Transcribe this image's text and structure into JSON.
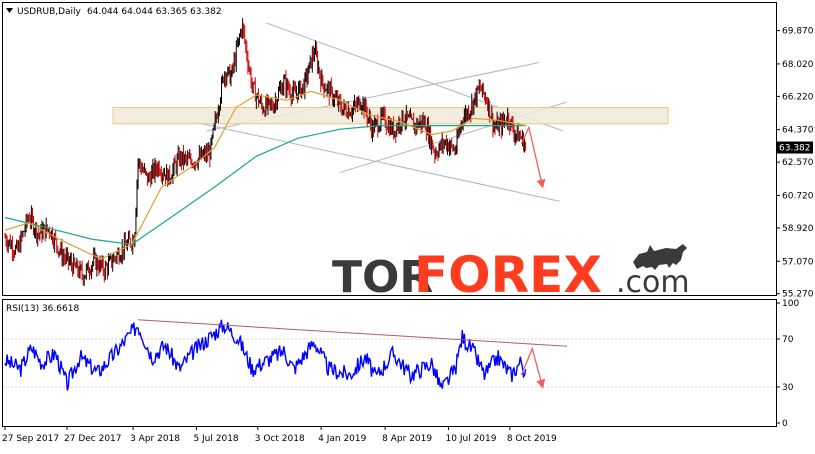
{
  "chart_data": [
    {
      "type": "candlestick",
      "symbol_header": "USDRUB,Daily",
      "ohlc_header": "64.044 64.044 63.365 63.382",
      "last_price_label": "63.382",
      "y_ticks": [
        "69.870",
        "68.020",
        "66.220",
        "64.370",
        "62.570",
        "60.720",
        "58.920",
        "57.070",
        "55.270"
      ],
      "y_values": [
        69.87,
        68.02,
        66.22,
        64.37,
        62.57,
        60.72,
        58.92,
        57.07,
        55.27
      ],
      "ylim": [
        55.2,
        71.4
      ],
      "x_ticks": [
        "27 Sep 2017",
        "27 Dec 2017",
        "3 Apr 2018",
        "5 Jul 2018",
        "3 Oct 2018",
        "4 Jan 2019",
        "8 Apr 2019",
        "10 Jul 2019",
        "8 Oct 2019"
      ],
      "price_path": [
        [
          "2017-09-27",
          58.4
        ],
        [
          "2017-10-15",
          57.6
        ],
        [
          "2017-11-01",
          59.6
        ],
        [
          "2017-11-15",
          58.6
        ],
        [
          "2017-12-01",
          58.9
        ],
        [
          "2017-12-20",
          57.4
        ],
        [
          "2018-01-05",
          56.8
        ],
        [
          "2018-01-20",
          56.3
        ],
        [
          "2018-02-05",
          57.1
        ],
        [
          "2018-02-20",
          56.6
        ],
        [
          "2018-03-05",
          57.2
        ],
        [
          "2018-03-20",
          57.8
        ],
        [
          "2018-04-05",
          58.4
        ],
        [
          "2018-04-10",
          62.6
        ],
        [
          "2018-04-25",
          61.6
        ],
        [
          "2018-05-10",
          62.4
        ],
        [
          "2018-05-25",
          61.7
        ],
        [
          "2018-06-10",
          62.8
        ],
        [
          "2018-06-25",
          62.6
        ],
        [
          "2018-07-10",
          62.8
        ],
        [
          "2018-07-25",
          63.1
        ],
        [
          "2018-08-05",
          65.5
        ],
        [
          "2018-08-15",
          67.6
        ],
        [
          "2018-08-25",
          67.3
        ],
        [
          "2018-09-10",
          70.2
        ],
        [
          "2018-09-25",
          66.7
        ],
        [
          "2018-10-10",
          65.6
        ],
        [
          "2018-10-25",
          65.7
        ],
        [
          "2018-11-10",
          67.0
        ],
        [
          "2018-11-25",
          66.3
        ],
        [
          "2018-12-10",
          66.8
        ],
        [
          "2018-12-25",
          68.8
        ],
        [
          "2019-01-05",
          67.0
        ],
        [
          "2019-01-20",
          66.3
        ],
        [
          "2019-02-05",
          65.5
        ],
        [
          "2019-02-20",
          65.5
        ],
        [
          "2019-03-05",
          66.0
        ],
        [
          "2019-03-20",
          64.4
        ],
        [
          "2019-04-05",
          65.0
        ],
        [
          "2019-04-20",
          64.3
        ],
        [
          "2019-05-05",
          65.1
        ],
        [
          "2019-05-20",
          64.6
        ],
        [
          "2019-06-05",
          64.8
        ],
        [
          "2019-06-20",
          63.1
        ],
        [
          "2019-07-05",
          63.7
        ],
        [
          "2019-07-20",
          63.2
        ],
        [
          "2019-07-30",
          65.0
        ],
        [
          "2019-08-10",
          65.5
        ],
        [
          "2019-08-25",
          66.7
        ],
        [
          "2019-09-05",
          66.0
        ],
        [
          "2019-09-15",
          64.5
        ],
        [
          "2019-09-25",
          64.6
        ],
        [
          "2019-10-05",
          65.1
        ],
        [
          "2019-10-15",
          64.2
        ],
        [
          "2019-10-25",
          63.9
        ],
        [
          "2019-11-01",
          63.382
        ]
      ],
      "ma_fast": [
        [
          "2017-09-27",
          58.8
        ],
        [
          "2017-11-01",
          59.2
        ],
        [
          "2017-12-15",
          58.3
        ],
        [
          "2018-02-15",
          57.2
        ],
        [
          "2018-04-01",
          58.0
        ],
        [
          "2018-05-15",
          61.2
        ],
        [
          "2018-07-01",
          62.4
        ],
        [
          "2018-08-01",
          63.4
        ],
        [
          "2018-09-01",
          65.6
        ],
        [
          "2018-10-01",
          66.3
        ],
        [
          "2018-11-15",
          66.0
        ],
        [
          "2018-12-20",
          66.5
        ],
        [
          "2019-02-01",
          66.0
        ],
        [
          "2019-03-15",
          65.2
        ],
        [
          "2019-05-01",
          64.8
        ],
        [
          "2019-06-15",
          64.1
        ],
        [
          "2019-07-15",
          64.3
        ],
        [
          "2019-08-15",
          65.0
        ],
        [
          "2019-09-20",
          64.9
        ],
        [
          "2019-11-01",
          64.6
        ]
      ],
      "ma_slow": [
        [
          "2017-09-27",
          59.5
        ],
        [
          "2017-12-01",
          58.9
        ],
        [
          "2018-02-01",
          58.3
        ],
        [
          "2018-04-01",
          58.0
        ],
        [
          "2018-06-01",
          59.6
        ],
        [
          "2018-08-01",
          61.2
        ],
        [
          "2018-10-01",
          62.9
        ],
        [
          "2018-12-01",
          63.9
        ],
        [
          "2019-02-01",
          64.4
        ],
        [
          "2019-04-01",
          64.6
        ],
        [
          "2019-06-01",
          64.6
        ],
        [
          "2019-08-01",
          64.6
        ],
        [
          "2019-11-01",
          64.6
        ]
      ],
      "resistance_zone": [
        64.7,
        65.6
      ],
      "forecast_arrow": [
        [
          "2019-10-25",
          63.6
        ],
        [
          "2019-11-05",
          64.5
        ],
        [
          "2019-11-25",
          61.2
        ]
      ]
    },
    {
      "type": "line",
      "indicator_header": "RSI(13) 36.6618",
      "y_ticks": [
        "100",
        "70",
        "30",
        "0"
      ],
      "y_values": [
        100,
        70,
        30,
        0
      ],
      "ylim": [
        0,
        100
      ],
      "rsi_path": [
        [
          "2017-09-27",
          52
        ],
        [
          "2017-10-20",
          45
        ],
        [
          "2017-11-05",
          63
        ],
        [
          "2017-11-20",
          50
        ],
        [
          "2017-12-10",
          58
        ],
        [
          "2017-12-27",
          32
        ],
        [
          "2018-01-15",
          55
        ],
        [
          "2018-02-10",
          42
        ],
        [
          "2018-03-10",
          60
        ],
        [
          "2018-04-10",
          82
        ],
        [
          "2018-05-01",
          55
        ],
        [
          "2018-05-20",
          65
        ],
        [
          "2018-06-10",
          45
        ],
        [
          "2018-07-01",
          60
        ],
        [
          "2018-08-15",
          82
        ],
        [
          "2018-09-05",
          70
        ],
        [
          "2018-09-25",
          45
        ],
        [
          "2018-10-15",
          52
        ],
        [
          "2018-11-10",
          60
        ],
        [
          "2018-11-25",
          45
        ],
        [
          "2018-12-25",
          68
        ],
        [
          "2019-01-15",
          45
        ],
        [
          "2019-02-15",
          40
        ],
        [
          "2019-03-10",
          55
        ],
        [
          "2019-03-25",
          38
        ],
        [
          "2019-04-20",
          58
        ],
        [
          "2019-05-15",
          40
        ],
        [
          "2019-06-15",
          50
        ],
        [
          "2019-06-30",
          28
        ],
        [
          "2019-07-20",
          45
        ],
        [
          "2019-07-30",
          72
        ],
        [
          "2019-08-15",
          60
        ],
        [
          "2019-09-01",
          40
        ],
        [
          "2019-09-20",
          55
        ],
        [
          "2019-10-10",
          40
        ],
        [
          "2019-10-25",
          52
        ],
        [
          "2019-11-01",
          36.66
        ]
      ],
      "trendline": [
        [
          "2018-04-10",
          86
        ],
        [
          "2019-12-31",
          64
        ]
      ],
      "forecast_arrow": [
        [
          "2019-10-25",
          40
        ],
        [
          "2019-11-10",
          62
        ],
        [
          "2019-11-25",
          30
        ]
      ]
    }
  ],
  "watermark": {
    "part1": "TOR",
    "part2": "FOREX",
    "part3": ".com",
    "bull_icon": "bull-icon"
  },
  "colors": {
    "bull_candle": "#000000",
    "bear_candle": "#d00000",
    "ma_fast": "#e0a030",
    "ma_slow": "#18a890",
    "channel": "#a9b9c9",
    "zone_fill": "#f0ead8",
    "zone_border": "#e8c880",
    "arrow": "#f06060",
    "rsi_line": "#0000ff",
    "rsi_trend": "#b06060",
    "brand_red": "#ff3c1e",
    "brand_dark": "#3a3a3a"
  }
}
